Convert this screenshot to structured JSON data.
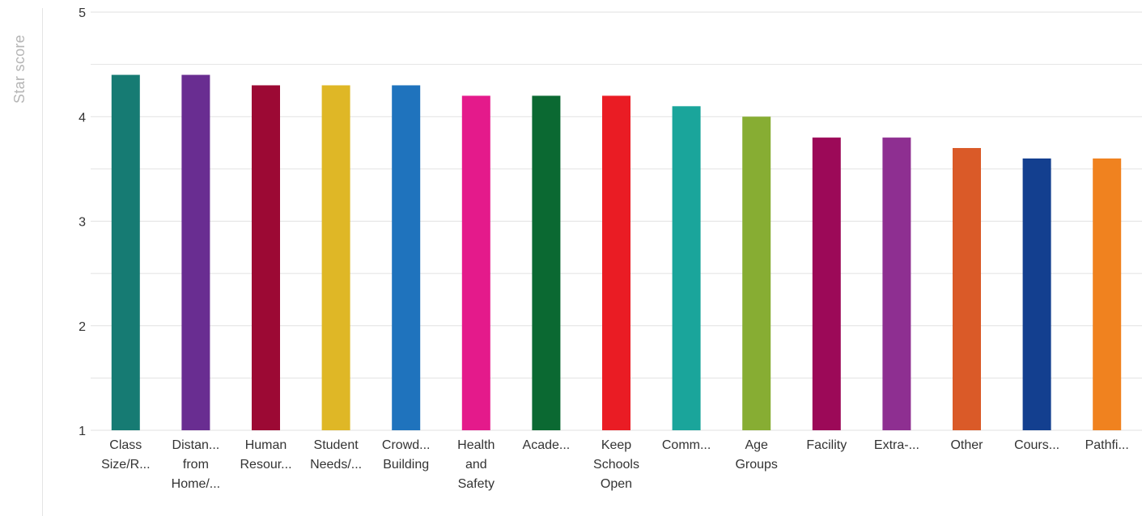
{
  "chart_data": {
    "type": "bar",
    "ylabel": "Star score",
    "ylim": [
      1,
      5
    ],
    "yticks": [
      "1",
      "2",
      "3",
      "4",
      "5"
    ],
    "grid": true,
    "categories": [
      [
        "Class",
        "Size/R..."
      ],
      [
        "Distan...",
        "from",
        "Home/..."
      ],
      [
        "Human",
        "Resour..."
      ],
      [
        "Student",
        "Needs/..."
      ],
      [
        "Crowd...",
        "Building"
      ],
      [
        "Health",
        "and",
        "Safety"
      ],
      [
        "Acade..."
      ],
      [
        "Keep",
        "Schools",
        "Open"
      ],
      [
        "Comm..."
      ],
      [
        "Age",
        "Groups"
      ],
      [
        "Facility"
      ],
      [
        "Extra-..."
      ],
      [
        "Other"
      ],
      [
        "Cours..."
      ],
      [
        "Pathfi..."
      ]
    ],
    "values": [
      4.4,
      4.4,
      4.3,
      4.3,
      4.3,
      4.2,
      4.2,
      4.2,
      4.1,
      4.0,
      3.8,
      3.8,
      3.7,
      3.6,
      3.6
    ],
    "colors": [
      "#167b73",
      "#692d91",
      "#9c0934",
      "#dfb726",
      "#1f73bd",
      "#e41a8b",
      "#0b6932",
      "#ea1c24",
      "#1aa59b",
      "#87ad33",
      "#9c0958",
      "#8e2f91",
      "#da5a28",
      "#133f8f",
      "#f0821f"
    ]
  }
}
